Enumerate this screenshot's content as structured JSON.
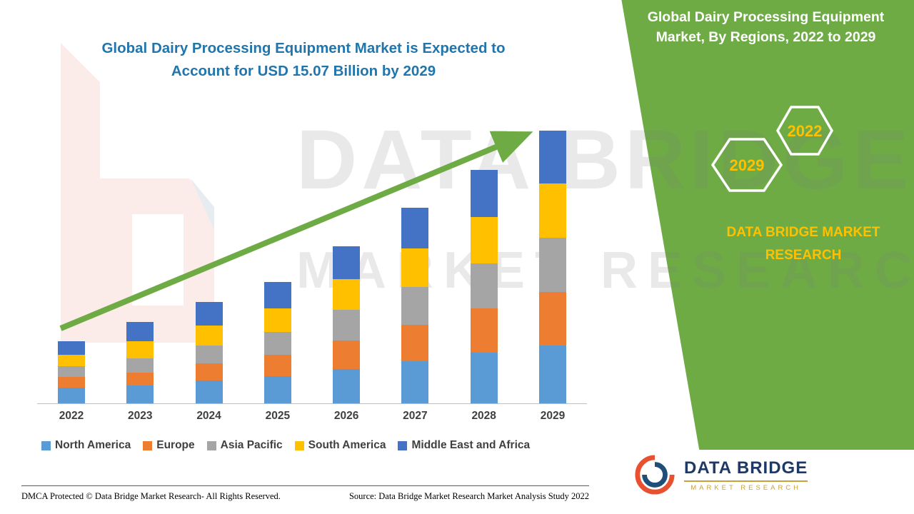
{
  "header": {
    "chart_title_line1": "Global Dairy Processing Equipment Market is Expected to",
    "chart_title_line2": "Account for USD 15.07 Billion by 2029"
  },
  "side_panel": {
    "heading": "Global Dairy Processing Equipment Market, By Regions, 2022 to 2029",
    "hexagons": [
      {
        "label": "2029"
      },
      {
        "label": "2022"
      }
    ],
    "brand_caption": "DATA BRIDGE MARKET RESEARCH",
    "colors": {
      "band": "#6EAB45",
      "caption": "#FFC000",
      "hexagon_border": "#FFFFFF"
    }
  },
  "chart_data": {
    "type": "bar",
    "stacked": true,
    "title": "Global Dairy Processing Equipment Market is Expected to Account for USD 15.07 Billion by 2029",
    "unit": "USD Billion",
    "categories": [
      "2022",
      "2023",
      "2024",
      "2025",
      "2026",
      "2027",
      "2028",
      "2029"
    ],
    "series": [
      {
        "name": "North America",
        "color": "#5B9BD5",
        "values": [
          0.85,
          1.0,
          1.25,
          1.5,
          1.9,
          2.35,
          2.8,
          3.2
        ]
      },
      {
        "name": "Europe",
        "color": "#ED7D31",
        "values": [
          0.6,
          0.7,
          0.95,
          1.2,
          1.6,
          2.0,
          2.45,
          2.95
        ]
      },
      {
        "name": "Asia Pacific",
        "color": "#A5A5A5",
        "values": [
          0.6,
          0.8,
          1.0,
          1.25,
          1.7,
          2.1,
          2.5,
          3.0
        ]
      },
      {
        "name": "South America",
        "color": "#FFC000",
        "values": [
          0.65,
          0.95,
          1.1,
          1.3,
          1.7,
          2.15,
          2.55,
          3.0
        ]
      },
      {
        "name": "Middle East and Africa",
        "color": "#4472C4",
        "values": [
          0.75,
          1.05,
          1.3,
          1.45,
          1.8,
          2.25,
          2.6,
          2.92
        ]
      }
    ],
    "totals_estimated": [
      3.45,
      4.5,
      5.6,
      6.7,
      8.7,
      10.85,
      12.9,
      15.07
    ],
    "ylim": [
      0,
      16
    ],
    "gridlines": false,
    "legend_position": "bottom",
    "trend_arrow": true
  },
  "watermark": {
    "line1": "DATA BRIDGE",
    "line2": "MARKET RESEARCH"
  },
  "footer": {
    "dmca": "DMCA Protected © Data Bridge Market Research- All Rights Reserved.",
    "source": "Source: Data Bridge Market Research Market Analysis Study 2022"
  },
  "logo": {
    "title": "DATA BRIDGE",
    "subtitle": "MARKET RESEARCH"
  }
}
